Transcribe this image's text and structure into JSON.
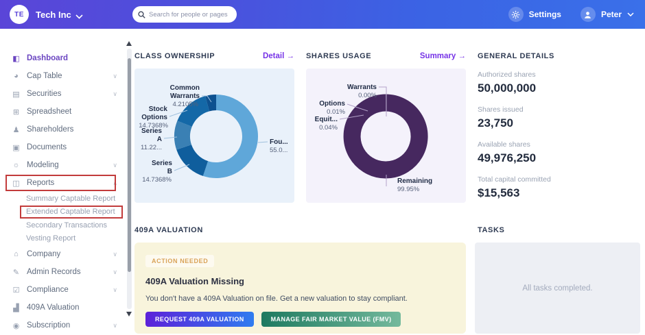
{
  "topbar": {
    "company_initials": "TE",
    "company_name": "Tech Inc",
    "search_placeholder": "Search for people or pages",
    "settings_label": "Settings",
    "user_name": "Peter"
  },
  "sidebar": {
    "items": [
      {
        "label": "Dashboard",
        "icon": "dashboard-icon",
        "active": true
      },
      {
        "label": "Cap Table",
        "icon": "captable-icon",
        "chevron": "down"
      },
      {
        "label": "Securities",
        "icon": "securities-icon",
        "chevron": "down"
      },
      {
        "label": "Spreadsheet",
        "icon": "spreadsheet-icon"
      },
      {
        "label": "Shareholders",
        "icon": "shareholders-icon"
      },
      {
        "label": "Documents",
        "icon": "documents-icon"
      },
      {
        "label": "Modeling",
        "icon": "modeling-icon",
        "chevron": "down"
      },
      {
        "label": "Reports",
        "icon": "reports-icon",
        "chevron": "up",
        "highlighted": true,
        "children": [
          {
            "label": "Summary Captable Report"
          },
          {
            "label": "Extended Captable Report",
            "highlighted": true
          },
          {
            "label": "Secondary Transactions"
          },
          {
            "label": "Vesting Report"
          }
        ]
      },
      {
        "label": "Company",
        "icon": "company-icon",
        "chevron": "down"
      },
      {
        "label": "Admin Records",
        "icon": "admin-records-icon",
        "chevron": "down"
      },
      {
        "label": "Compliance",
        "icon": "compliance-icon",
        "chevron": "down"
      },
      {
        "label": "409A Valuation",
        "icon": "valuation-icon"
      },
      {
        "label": "Subscription",
        "icon": "subscription-icon",
        "chevron": "down"
      }
    ]
  },
  "panels": {
    "class_ownership": {
      "title": "CLASS OWNERSHIP",
      "link": "Detail",
      "arrow": "→"
    },
    "shares_usage": {
      "title": "SHARES USAGE",
      "link": "Summary",
      "arrow": "→"
    },
    "general_details": {
      "title": "GENERAL DETAILS",
      "stats": [
        {
          "label": "Authorized shares",
          "value": "50,000,000"
        },
        {
          "label": "Shares issued",
          "value": "23,750"
        },
        {
          "label": "Available shares",
          "value": "49,976,250"
        },
        {
          "label": "Total capital committed",
          "value": "$15,563"
        }
      ]
    },
    "valuation": {
      "title": "409A VALUATION",
      "badge": "ACTION NEEDED",
      "heading": "409A Valuation Missing",
      "body": "You don't have a 409A Valuation on file. Get a new valuation to stay compliant.",
      "primary_button": "REQUEST 409A VALUATION",
      "secondary_button": "MANAGE FAIR MARKET VALUE (FMV)"
    },
    "tasks": {
      "title": "TASKS",
      "empty_text": "All tasks completed."
    }
  },
  "chart_data": [
    {
      "type": "pie",
      "title": "CLASS OWNERSHIP",
      "unit": "percent",
      "legend_position": "callout-labels",
      "slices": [
        {
          "name": "Founders",
          "label_lines": [
            "Fou..."
          ],
          "pct_label": "55.0...",
          "value": 55.08,
          "color": "#5fa7d9"
        },
        {
          "name": "Series B",
          "label_lines": [
            "Series",
            "B"
          ],
          "pct_label": "14.7368%",
          "value": 14.7368,
          "color": "#0f5e9d"
        },
        {
          "name": "Series A",
          "label_lines": [
            "Series",
            "A"
          ],
          "pct_label": "11.22...",
          "value": 11.23,
          "color": "#3a80b4"
        },
        {
          "name": "Stock Options",
          "label_lines": [
            "Stock",
            "Options"
          ],
          "pct_label": "14.7368%",
          "value": 14.7368,
          "color": "#1468a7"
        },
        {
          "name": "Common Warrants",
          "label_lines": [
            "Common",
            "Warrants"
          ],
          "pct_label": "4.2105%",
          "value": 4.2105,
          "color": "#0d5190"
        }
      ]
    },
    {
      "type": "pie",
      "title": "SHARES USAGE",
      "unit": "percent",
      "legend_position": "callout-labels",
      "slices": [
        {
          "name": "Warrants",
          "label_lines": [
            "Warrants"
          ],
          "pct_label": "0.00%",
          "value": 0.0,
          "color": "#46285f"
        },
        {
          "name": "Options",
          "label_lines": [
            "Options"
          ],
          "pct_label": "0.01%",
          "value": 0.01,
          "color": "#46285f"
        },
        {
          "name": "Equity",
          "label_lines": [
            "Equit..."
          ],
          "pct_label": "0.04%",
          "value": 0.04,
          "color": "#46285f"
        },
        {
          "name": "Remaining",
          "label_lines": [
            "Remaining"
          ],
          "pct_label": "99.95%",
          "value": 99.95,
          "color": "#46285f"
        }
      ]
    }
  ],
  "colors": {
    "topbar_gradient_start": "#5a45d8",
    "topbar_gradient_end": "#3a70e9",
    "accent_link": "#7734e7",
    "annotation_red": "#c23b3b",
    "alert_bg": "#f8f4dc",
    "badge_text": "#d9a258",
    "primary_btn_gradient": [
      "#5c21d9",
      "#2f7cf0"
    ],
    "secondary_btn_gradient": [
      "#1e7a60",
      "#74b99c"
    ]
  }
}
